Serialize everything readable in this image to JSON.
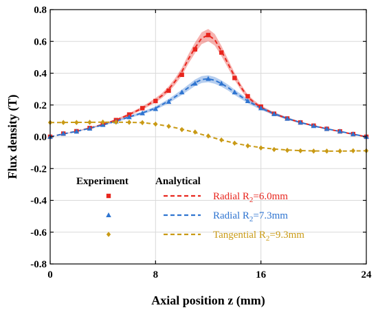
{
  "chart_data": {
    "type": "line",
    "xlabel": "Axial position z (mm)",
    "ylabel": "Flux density (T)",
    "xlim": [
      0,
      24
    ],
    "ylim": [
      -0.8,
      0.8
    ],
    "xticks": [
      0,
      8,
      16,
      24
    ],
    "yticks": [
      -0.8,
      -0.6,
      -0.4,
      -0.2,
      0.0,
      0.2,
      0.4,
      0.6,
      0.8
    ],
    "xtick_labels": [
      "0",
      "8",
      "16",
      "24"
    ],
    "ytick_labels": [
      "-0.8",
      "-0.6",
      "-0.4",
      "-0.2",
      "0.0",
      "0.2",
      "0.4",
      "0.6",
      "0.8"
    ],
    "grid": true,
    "legend_placement": "bottom-center",
    "legend_headers": {
      "experiment": "Experiment",
      "analytical": "Analytical"
    },
    "series": [
      {
        "name": "Radial R2=6.0mm",
        "label_main": "Radial R",
        "label_sub": "2",
        "label_tail": "=6.0mm",
        "color": "#e8261e",
        "marker": "square",
        "band_halfwidth": 0.02,
        "analytical_x": [
          0,
          1,
          2,
          3,
          4,
          5,
          6,
          7,
          8,
          8.5,
          9,
          9.5,
          10,
          10.5,
          11,
          11.5,
          12,
          12.5,
          13,
          13.5,
          14,
          14.5,
          15,
          15.5,
          16,
          17,
          18,
          19,
          20,
          21,
          22,
          23,
          24
        ],
        "analytical_y": [
          0.0,
          0.018,
          0.035,
          0.055,
          0.078,
          0.105,
          0.14,
          0.18,
          0.23,
          0.26,
          0.3,
          0.35,
          0.41,
          0.49,
          0.56,
          0.62,
          0.64,
          0.61,
          0.54,
          0.46,
          0.38,
          0.31,
          0.25,
          0.215,
          0.185,
          0.145,
          0.115,
          0.09,
          0.07,
          0.05,
          0.033,
          0.016,
          0.0
        ],
        "experiment_x": [
          0,
          1,
          2,
          3,
          4,
          5,
          6,
          7,
          8,
          9,
          10,
          11,
          12,
          13,
          14,
          15,
          16,
          17,
          18,
          19,
          20,
          21,
          22,
          23,
          24
        ],
        "experiment_y": [
          0.0,
          0.02,
          0.035,
          0.055,
          0.078,
          0.105,
          0.14,
          0.18,
          0.225,
          0.29,
          0.39,
          0.55,
          0.64,
          0.53,
          0.37,
          0.255,
          0.19,
          0.145,
          0.115,
          0.09,
          0.07,
          0.05,
          0.034,
          0.017,
          0.0
        ]
      },
      {
        "name": "Radial R2=7.3mm",
        "label_main": "Radial R",
        "label_sub": "2",
        "label_tail": "=7.3mm",
        "color": "#2e74d0",
        "marker": "triangle",
        "band_halfwidth": 0.02,
        "analytical_x": [
          0,
          1,
          2,
          3,
          4,
          5,
          6,
          7,
          8,
          9,
          10,
          10.5,
          11,
          11.5,
          12,
          12.5,
          13,
          13.5,
          14,
          15,
          16,
          17,
          18,
          19,
          20,
          21,
          22,
          23,
          24
        ],
        "analytical_y": [
          0.0,
          0.018,
          0.034,
          0.053,
          0.074,
          0.098,
          0.125,
          0.15,
          0.18,
          0.225,
          0.28,
          0.31,
          0.34,
          0.36,
          0.365,
          0.355,
          0.335,
          0.31,
          0.28,
          0.225,
          0.18,
          0.145,
          0.115,
          0.09,
          0.068,
          0.05,
          0.034,
          0.017,
          0.0
        ],
        "experiment_x": [
          0,
          1,
          2,
          3,
          4,
          5,
          6,
          7,
          8,
          9,
          10,
          11,
          12,
          13,
          14,
          15,
          16,
          17,
          18,
          19,
          20,
          21,
          22,
          23,
          24
        ],
        "experiment_y": [
          0.0,
          0.02,
          0.033,
          0.052,
          0.075,
          0.097,
          0.124,
          0.148,
          0.175,
          0.22,
          0.28,
          0.335,
          0.365,
          0.335,
          0.28,
          0.225,
          0.18,
          0.143,
          0.114,
          0.09,
          0.068,
          0.05,
          0.034,
          0.017,
          0.0
        ]
      },
      {
        "name": "Tangential R2=9.3mm",
        "label_main": "Tangential R",
        "label_sub": "2",
        "label_tail": "=9.3mm",
        "color": "#c99a15",
        "marker": "diamond",
        "band_halfwidth": 0.0,
        "analytical_x": [
          0,
          1,
          2,
          3,
          4,
          5,
          6,
          7,
          8,
          9,
          10,
          11,
          12,
          13,
          14,
          15,
          16,
          17,
          18,
          19,
          20,
          21,
          22,
          23,
          24
        ],
        "analytical_y": [
          0.09,
          0.09,
          0.091,
          0.091,
          0.092,
          0.092,
          0.091,
          0.089,
          0.08,
          0.066,
          0.048,
          0.027,
          0.003,
          -0.02,
          -0.04,
          -0.056,
          -0.068,
          -0.077,
          -0.083,
          -0.087,
          -0.089,
          -0.09,
          -0.09,
          -0.089,
          -0.088
        ],
        "experiment_x": [
          0,
          1,
          2,
          3,
          4,
          5,
          6,
          7,
          8,
          9,
          10,
          11,
          12,
          13,
          14,
          15,
          16,
          17,
          18,
          19,
          20,
          21,
          22,
          23,
          24
        ],
        "experiment_y": [
          0.09,
          0.09,
          0.09,
          0.091,
          0.092,
          0.092,
          0.091,
          0.089,
          0.08,
          0.066,
          0.045,
          0.03,
          0.005,
          -0.02,
          -0.04,
          -0.057,
          -0.07,
          -0.08,
          -0.085,
          -0.088,
          -0.09,
          -0.09,
          -0.09,
          -0.088,
          -0.088
        ]
      }
    ]
  }
}
